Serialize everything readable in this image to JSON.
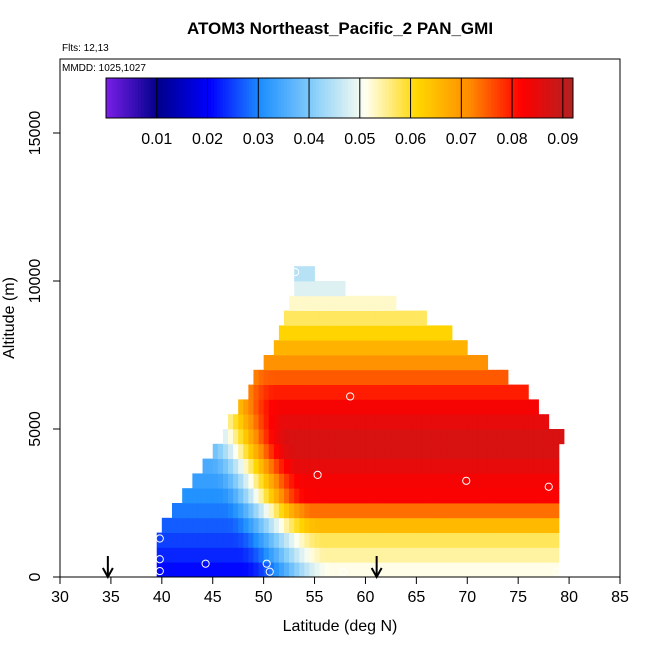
{
  "chart_data": {
    "type": "heatmap",
    "title": "ATOM3 Northeast_Pacific_2 PAN_GMI",
    "flights_label": "Flts: 12,13",
    "dates_label": "MMDD: 1025,1027",
    "xlabel": "Latitude (deg N)",
    "ylabel": "Altitude (m)",
    "xlim": [
      30,
      85
    ],
    "ylim": [
      0,
      17500
    ],
    "x_ticks": [
      "30",
      "35",
      "40",
      "45",
      "50",
      "55",
      "60",
      "65",
      "70",
      "75",
      "80",
      "85"
    ],
    "y_ticks": [
      "0",
      "5000",
      "10000",
      "15000"
    ],
    "colorbar": {
      "min": 0.0,
      "max": 0.092,
      "tick_labels": [
        "0.01",
        "0.02",
        "0.03",
        "0.04",
        "0.05",
        "0.06",
        "0.07",
        "0.08",
        "0.09"
      ],
      "tick_values": [
        0.01,
        0.02,
        0.03,
        0.04,
        0.05,
        0.06,
        0.07,
        0.08,
        0.09
      ],
      "colors": [
        "#7a1fe8",
        "#00008b",
        "#0000ff",
        "#1e90ff",
        "#87cefa",
        "#fffff0",
        "#ffd700",
        "#ff8c00",
        "#ff0000",
        "#b22222"
      ]
    },
    "field_extent": {
      "altitude_bins": [
        0,
        500,
        1000,
        1500,
        2000,
        2500,
        3000,
        3500,
        4000,
        4500,
        5000,
        5500,
        6000,
        6500,
        7000,
        7500,
        8000,
        8500,
        9000,
        9500,
        10000
      ],
      "lat_min_by_bin": [
        39.5,
        39.5,
        39.5,
        40,
        41,
        42,
        43,
        44,
        45,
        46,
        46.5,
        47.5,
        48.5,
        49,
        50,
        51,
        51.5,
        52,
        52.5,
        53,
        53
      ],
      "lat_max_by_bin": [
        79,
        79,
        79,
        79,
        79,
        79,
        79,
        79,
        79,
        79.5,
        78,
        77,
        76,
        74,
        72,
        70,
        68.5,
        66,
        63,
        58,
        55
      ]
    },
    "value_model": {
      "low_latitude_value": 0.02,
      "peak_value": 0.088,
      "peak_altitude_m": 4500,
      "peak_lat_start": 58,
      "surface_value_north": 0.05,
      "upper_value": 0.045
    },
    "observation_points": [
      {
        "lat": 39.8,
        "alt": 200
      },
      {
        "lat": 39.8,
        "alt": 600
      },
      {
        "lat": 39.8,
        "alt": 1300
      },
      {
        "lat": 44.3,
        "alt": 450
      },
      {
        "lat": 50.3,
        "alt": 450
      },
      {
        "lat": 50.6,
        "alt": 180
      },
      {
        "lat": 57.8,
        "alt": 180
      },
      {
        "lat": 61.2,
        "alt": 180
      },
      {
        "lat": 78.8,
        "alt": 180
      },
      {
        "lat": 53.1,
        "alt": 10300
      },
      {
        "lat": 58.5,
        "alt": 6100
      },
      {
        "lat": 55.3,
        "alt": 3450
      },
      {
        "lat": 69.9,
        "alt": 3250
      },
      {
        "lat": 78.0,
        "alt": 3050
      },
      {
        "lat": 79.5,
        "alt": 4200
      }
    ],
    "flight_markers_lat": [
      34.7,
      61.1
    ]
  }
}
